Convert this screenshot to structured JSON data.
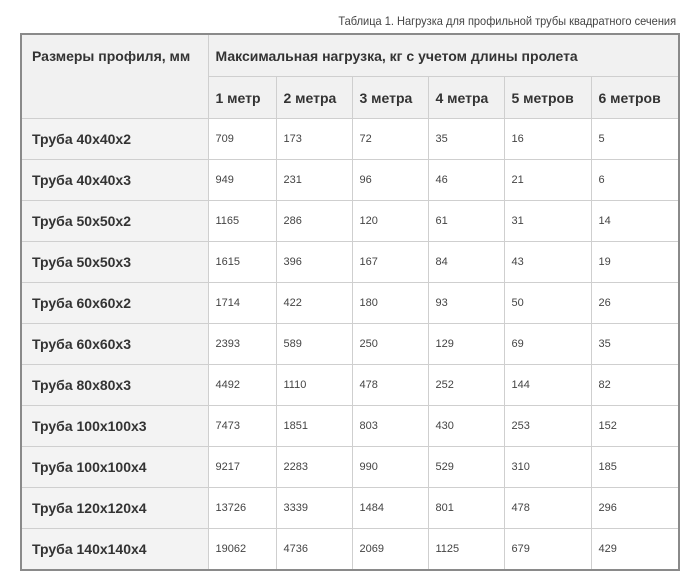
{
  "caption": "Таблица 1. Нагрузка для профильной трубы квадратного сечения",
  "header": {
    "size_col": "Размеры профиля, мм",
    "load_group": "Максимальная нагрузка, кг с учетом длины пролета",
    "spans": [
      "1 метр",
      "2 метра",
      "3 метра",
      "4 метра",
      "5 метров",
      "6 метров"
    ]
  },
  "rows": [
    {
      "name": "Труба 40х40х2",
      "values": [
        "709",
        "173",
        "72",
        "35",
        "16",
        "5"
      ]
    },
    {
      "name": "Труба 40х40х3",
      "values": [
        "949",
        "231",
        "96",
        "46",
        "21",
        "6"
      ]
    },
    {
      "name": "Труба 50х50х2",
      "values": [
        "1165",
        "286",
        "120",
        "61",
        "31",
        "14"
      ]
    },
    {
      "name": "Труба 50х50х3",
      "values": [
        "1615",
        "396",
        "167",
        "84",
        "43",
        "19"
      ]
    },
    {
      "name": "Труба 60х60х2",
      "values": [
        "1714",
        "422",
        "180",
        "93",
        "50",
        "26"
      ]
    },
    {
      "name": "Труба 60х60х3",
      "values": [
        "2393",
        "589",
        "250",
        "129",
        "69",
        "35"
      ]
    },
    {
      "name": "Труба 80х80х3",
      "values": [
        "4492",
        "1110",
        "478",
        "252",
        "144",
        "82"
      ]
    },
    {
      "name": "Труба 100х100х3",
      "values": [
        "7473",
        "1851",
        "803",
        "430",
        "253",
        "152"
      ]
    },
    {
      "name": "Труба 100х100х4",
      "values": [
        "9217",
        "2283",
        "990",
        "529",
        "310",
        "185"
      ]
    },
    {
      "name": "Труба 120х120х4",
      "values": [
        "13726",
        "3339",
        "1484",
        "801",
        "478",
        "296"
      ]
    },
    {
      "name": "Труба 140х140х4",
      "values": [
        "19062",
        "4736",
        "2069",
        "1125",
        "679",
        "429"
      ]
    }
  ]
}
